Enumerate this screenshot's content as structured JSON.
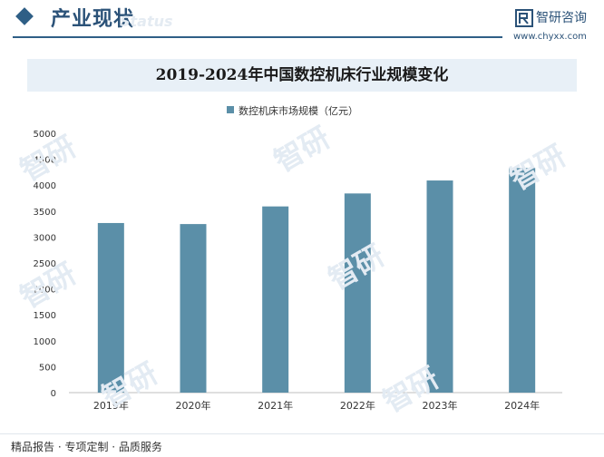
{
  "header": {
    "section_title": "产业现状",
    "ghost_text": "Status",
    "brand_name": "智研咨询",
    "brand_url": "www.chyxx.com"
  },
  "footer": {
    "text": "精品报告 · 专项定制 · 品质服务"
  },
  "colors": {
    "bar": "#5b8fa8",
    "header_accent": "#2f5f86",
    "title_band": "#e8f0f7"
  },
  "chart_data": {
    "type": "bar",
    "title": "2019-2024年中国数控机床行业规模变化",
    "xlabel": "",
    "ylabel": "",
    "categories": [
      "2019年",
      "2020年",
      "2021年",
      "2022年",
      "2023年",
      "2024年"
    ],
    "series": [
      {
        "name": "数控机床市场规模（亿元）",
        "values": [
          3270,
          3250,
          3590,
          3840,
          4090,
          4330
        ]
      }
    ],
    "ylim": [
      0,
      5000
    ],
    "yticks": [
      0,
      500,
      1000,
      1500,
      2000,
      2500,
      3000,
      3500,
      4000,
      4500,
      5000
    ],
    "grid": false,
    "legend_position": "top-center"
  }
}
